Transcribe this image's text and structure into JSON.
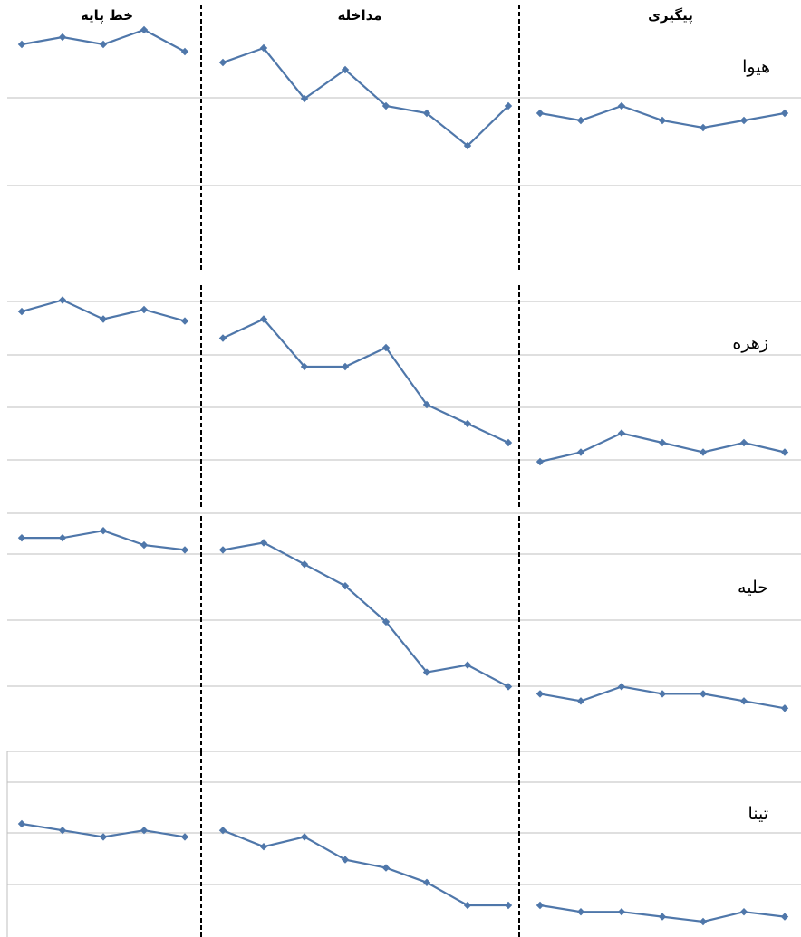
{
  "chart_data": {
    "type": "line",
    "phases": [
      "خط پایه",
      "مداخله",
      "پیگیری"
    ],
    "gridlines": true,
    "line_color": "#4f77aa",
    "marker_color": "#4f77aa",
    "grid_color": "#bfbfbf",
    "divider_color": "#000000",
    "participants": [
      {
        "name": "هیوا",
        "ylim": [
          0,
          10
        ],
        "baseline": [
          8.8,
          9.2,
          8.8,
          9.6,
          8.4
        ],
        "intervention": [
          7.8,
          8.6,
          5.8,
          7.4,
          5.4,
          5.0,
          3.2,
          5.4
        ],
        "follow_up": [
          5.0,
          4.6,
          5.4,
          4.6,
          4.2,
          4.6,
          5.0
        ]
      },
      {
        "name": "زهره",
        "ylim": [
          0,
          10
        ],
        "baseline": [
          7.9,
          8.5,
          7.5,
          8.0,
          7.4
        ],
        "intervention": [
          6.5,
          7.5,
          5.0,
          5.0,
          6.0,
          3.0,
          2.0,
          1.0
        ],
        "follow_up": [
          0.0,
          0.5,
          1.5,
          1.0,
          0.5,
          1.0,
          0.5
        ]
      },
      {
        "name": "حلیه",
        "ylim": [
          0,
          10
        ],
        "baseline": [
          8.9,
          8.9,
          9.2,
          8.6,
          8.4
        ],
        "intervention": [
          8.4,
          8.7,
          7.8,
          6.9,
          5.4,
          3.3,
          3.6,
          2.7
        ],
        "follow_up": [
          2.4,
          2.1,
          2.7,
          2.4,
          2.4,
          2.1,
          1.8
        ]
      },
      {
        "name": "تینا",
        "ylim": [
          0,
          10
        ],
        "baseline": [
          5.0,
          4.6,
          4.2,
          4.6,
          4.2
        ],
        "intervention": [
          4.6,
          3.6,
          4.2,
          2.8,
          2.3,
          1.4,
          0.0,
          0.0
        ],
        "follow_up": [
          0.0,
          -0.4,
          -0.4,
          -0.7,
          -1.0,
          -0.4,
          -0.7
        ]
      }
    ]
  }
}
